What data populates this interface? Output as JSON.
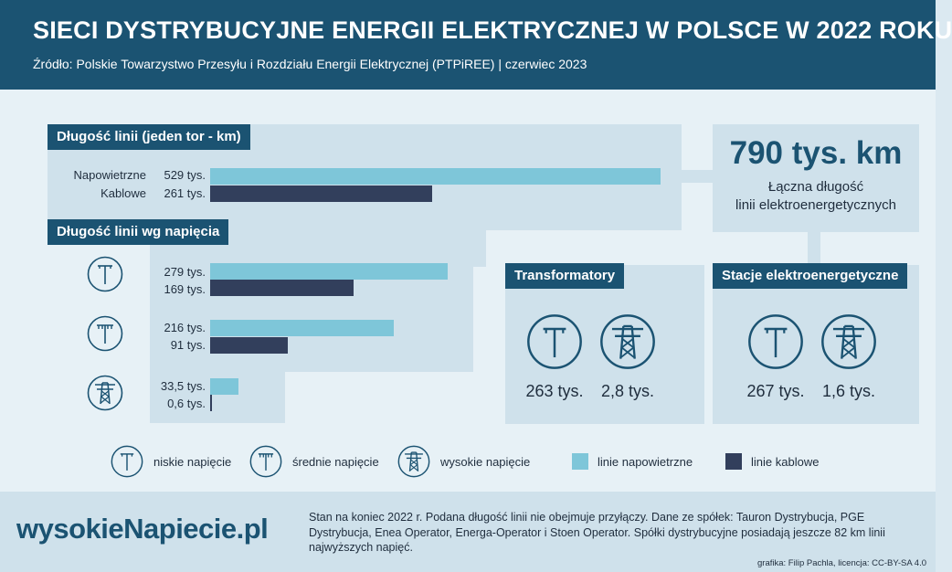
{
  "header": {
    "title": "SIECI DYSTRYBUCYJNE ENERGII ELEKTRYCZNEJ W POLSCE W 2022 ROKU",
    "subtitle": "Źródło: Polskie Towarzystwo Przesyłu i Rozdziału Energii Elektrycznej (PTPiREE) | czerwiec 2023"
  },
  "sections": {
    "line_length_label": "Długość linii (jeden tor - km)",
    "by_voltage_label": "Długość linii wg napięcia",
    "transformers_label": "Transformatory",
    "stations_label": "Stacje elektroenergetyczne"
  },
  "total": {
    "value": "790 tys. km",
    "caption_line1": "Łączna długość",
    "caption_line2": "linii elektroenergetycznych"
  },
  "transformers": {
    "low": "263 tys.",
    "high": "2,8 tys."
  },
  "stations": {
    "low": "267 tys.",
    "high": "1,6 tys."
  },
  "legend": {
    "low": "niskie napięcie",
    "medium": "średnie napięcie",
    "high": "wysokie napięcie",
    "air": "linie napowietrzne",
    "cable": "linie kablowe"
  },
  "colors": {
    "air": "#7ec6d9",
    "cable": "#323f5c",
    "brand": "#1b5372"
  },
  "icons": {
    "low": "low-voltage-pole-icon",
    "medium": "medium-voltage-pole-icon",
    "high": "high-voltage-pylon-icon"
  },
  "footer": {
    "logo": "wysokieNapiecie.pl",
    "note": "Stan na koniec 2022 r. Podana długość linii nie obejmuje przyłączy. Dane ze spółek: Tauron Dystrybucja, PGE Dystrybucja, Enea Operator, Energa-Operator i Stoen Operator. Spółki dystrybucyjne posiadają jeszcze 82 km linii najwyższych napięć.",
    "credit": "grafika: Filip Pachla, licencja: CC-BY-SA 4.0"
  },
  "chart_data": [
    {
      "type": "bar",
      "orientation": "horizontal",
      "title": "Długość linii (jeden tor - km)",
      "unit": "tys. km",
      "categories": [
        "Napowietrzne",
        "Kablowe"
      ],
      "values": [
        529,
        261
      ],
      "labels": [
        "529 tys.",
        "261 tys."
      ]
    },
    {
      "type": "bar",
      "orientation": "horizontal",
      "title": "Długość linii wg napięcia",
      "unit": "tys. km",
      "categories": [
        "niskie napięcie",
        "średnie napięcie",
        "wysokie napięcie"
      ],
      "series": [
        {
          "name": "linie napowietrzne",
          "values": [
            279,
            216,
            33.5
          ],
          "labels": [
            "279 tys.",
            "216 tys.",
            "33,5 tys."
          ]
        },
        {
          "name": "linie kablowe",
          "values": [
            169,
            91,
            0.6
          ],
          "labels": [
            "169 tys.",
            "91 tys.",
            "0,6 tys."
          ]
        }
      ]
    }
  ]
}
